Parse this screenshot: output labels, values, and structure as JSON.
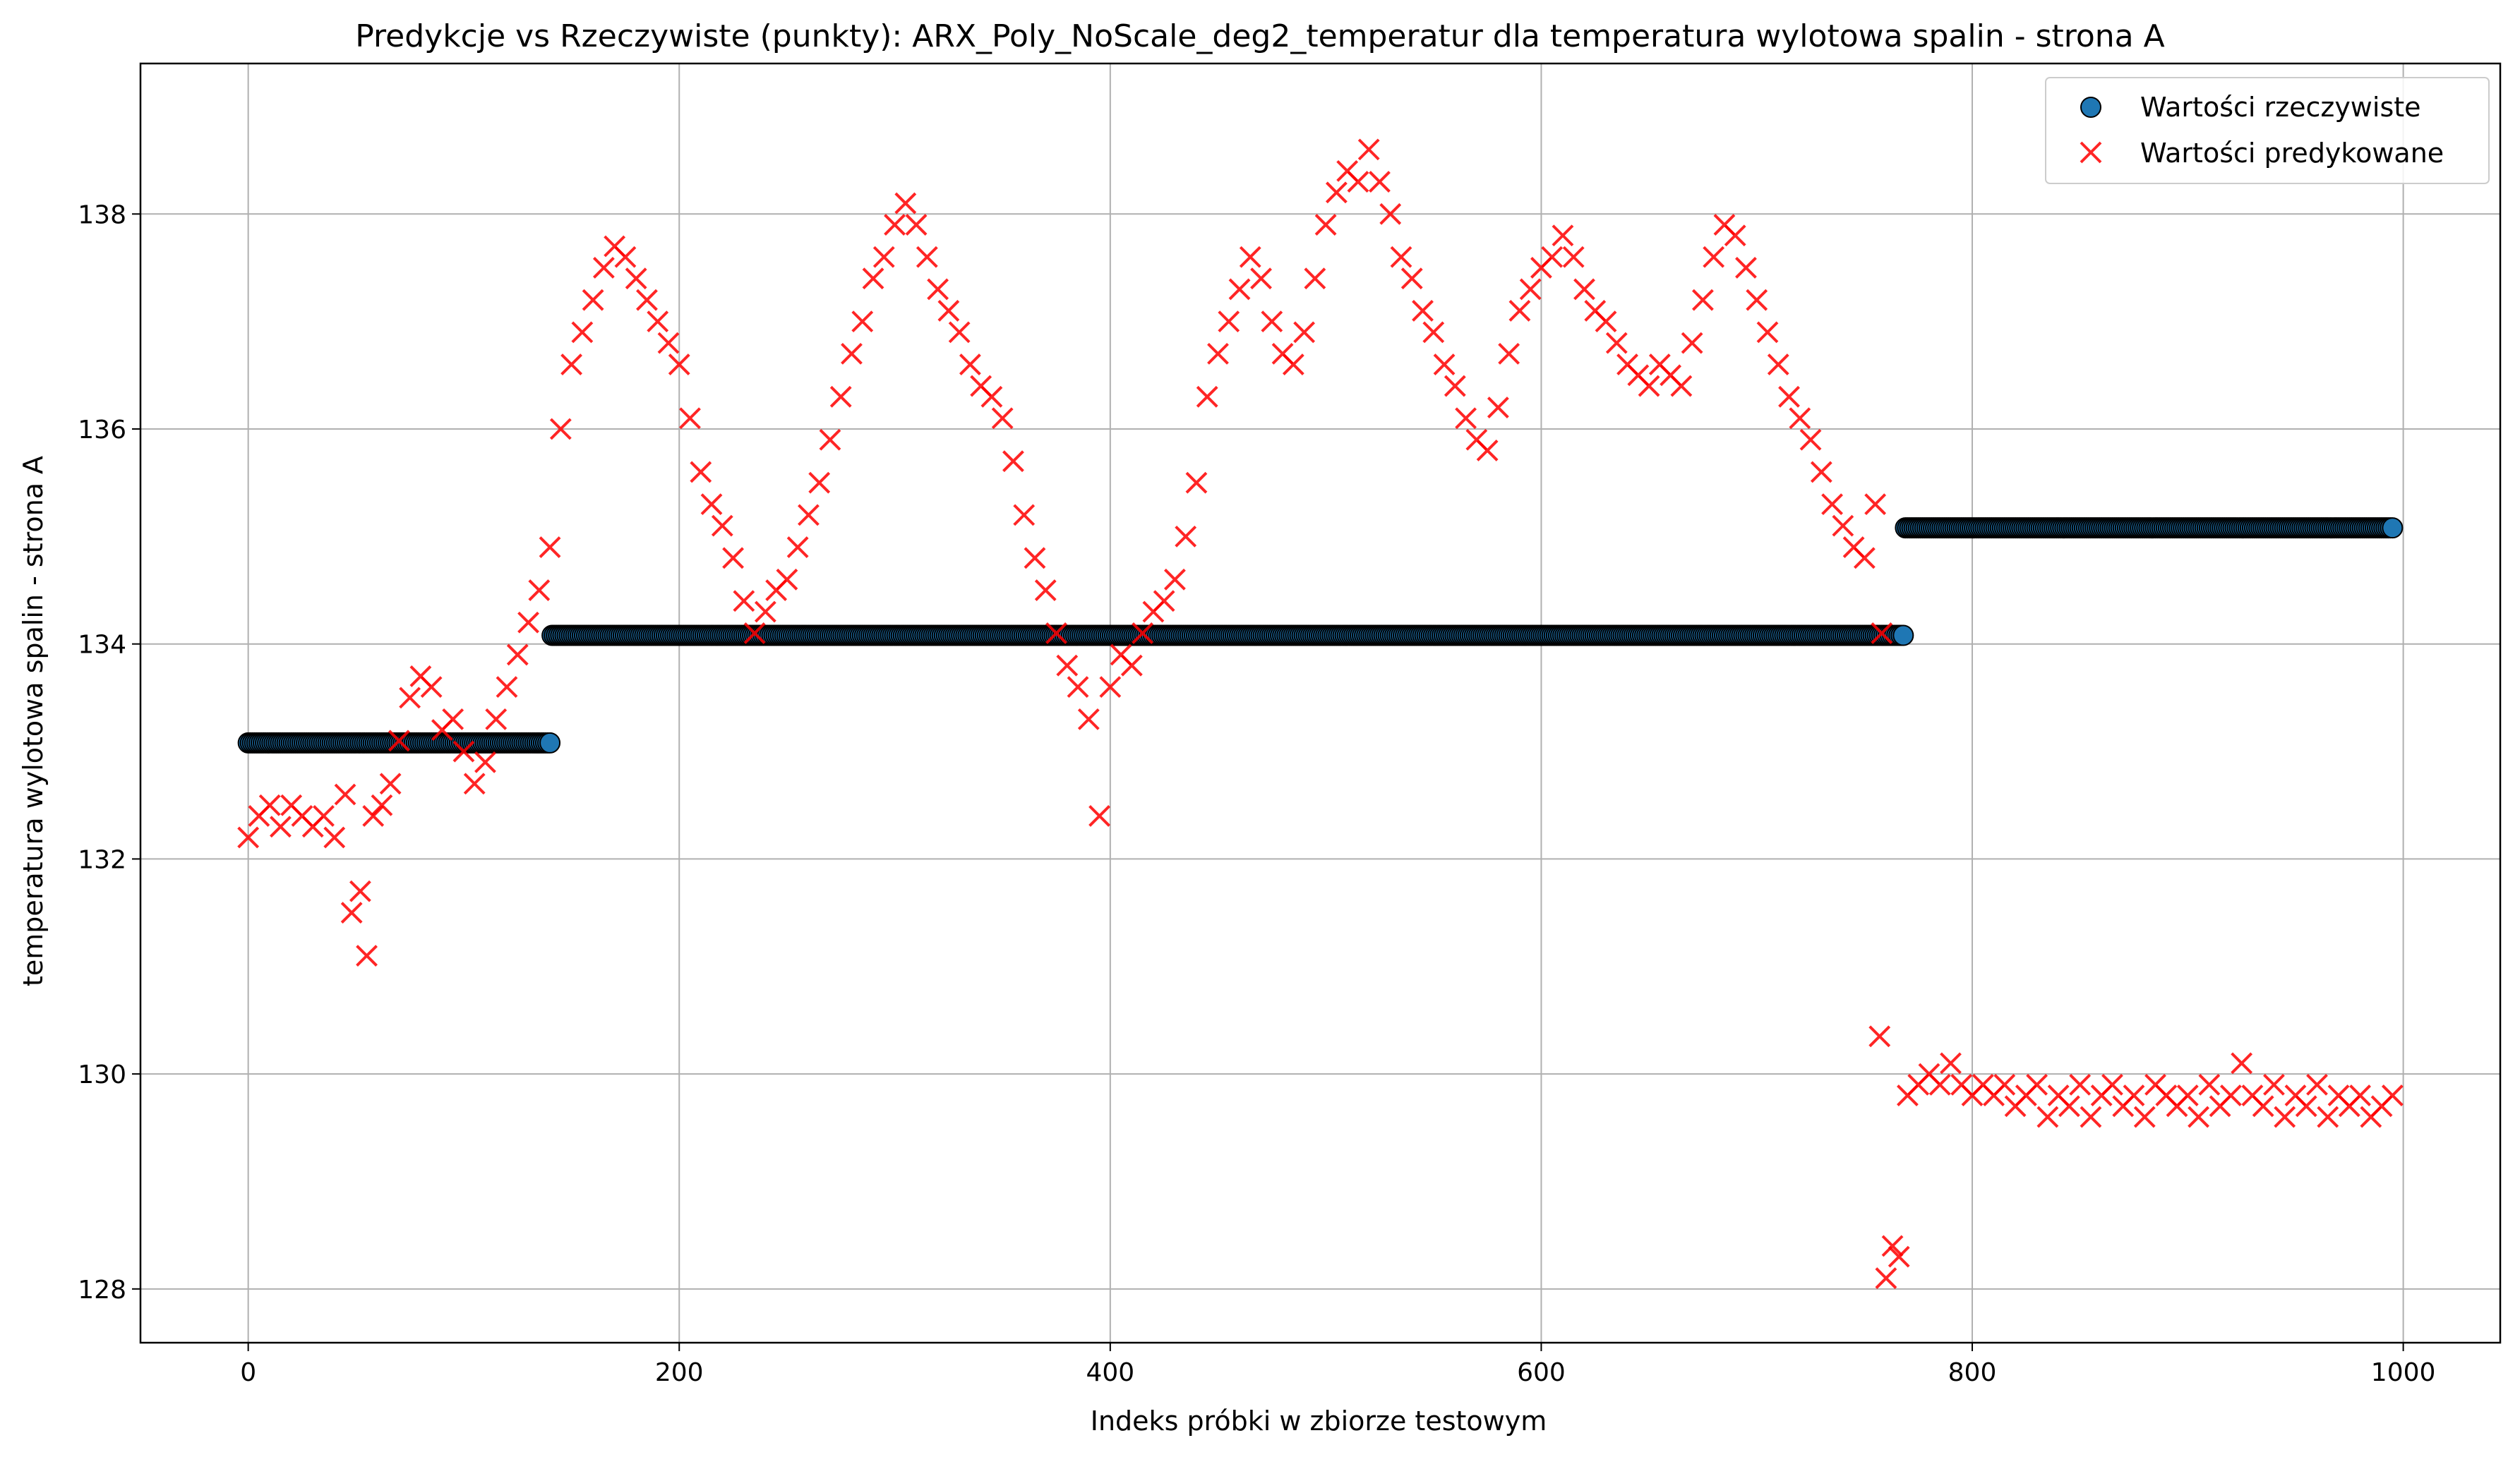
{
  "chart_data": {
    "type": "scatter",
    "title": "Predykcje vs Rzeczywiste (punkty): ARX_Poly_NoScale_deg2_temperatur dla temperatura wylotowa spalin - strona A",
    "xlabel": "Indeks próbki w zbiorze testowym",
    "ylabel": "temperatura wylotowa spalin - strona A",
    "xlim": [
      -50,
      1045
    ],
    "ylim": [
      127.5,
      139.4
    ],
    "xticks": [
      0,
      200,
      400,
      600,
      800,
      1000
    ],
    "yticks": [
      128,
      130,
      132,
      134,
      136,
      138
    ],
    "xtick_labels": [
      "0",
      "200",
      "400",
      "600",
      "800",
      "1000"
    ],
    "ytick_labels": [
      "128",
      "130",
      "132",
      "134",
      "136",
      "138"
    ],
    "grid": true,
    "legend_position": "top-right",
    "series": [
      {
        "name": "Wartości rzeczywiste",
        "marker": "circle",
        "color": "#1f77b4",
        "edge_color": "#000000",
        "segments": [
          {
            "x_start": 0,
            "x_end": 140,
            "y": 133.08
          },
          {
            "x_start": 141,
            "x_end": 768,
            "y": 134.08
          },
          {
            "x_start": 769,
            "x_end": 995,
            "y": 135.08
          }
        ]
      },
      {
        "name": "Wartości predykowane",
        "marker": "x",
        "color": "#ff0000",
        "points": [
          [
            0,
            132.2
          ],
          [
            5,
            132.4
          ],
          [
            10,
            132.5
          ],
          [
            15,
            132.3
          ],
          [
            20,
            132.5
          ],
          [
            25,
            132.4
          ],
          [
            30,
            132.3
          ],
          [
            35,
            132.4
          ],
          [
            40,
            132.2
          ],
          [
            45,
            132.6
          ],
          [
            48,
            131.5
          ],
          [
            52,
            131.7
          ],
          [
            55,
            131.1
          ],
          [
            58,
            132.4
          ],
          [
            62,
            132.5
          ],
          [
            66,
            132.7
          ],
          [
            70,
            133.1
          ],
          [
            75,
            133.5
          ],
          [
            80,
            133.7
          ],
          [
            85,
            133.6
          ],
          [
            90,
            133.2
          ],
          [
            95,
            133.3
          ],
          [
            100,
            133.0
          ],
          [
            105,
            132.7
          ],
          [
            110,
            132.9
          ],
          [
            115,
            133.3
          ],
          [
            120,
            133.6
          ],
          [
            125,
            133.9
          ],
          [
            130,
            134.2
          ],
          [
            135,
            134.5
          ],
          [
            140,
            134.9
          ],
          [
            145,
            136.0
          ],
          [
            150,
            136.6
          ],
          [
            155,
            136.9
          ],
          [
            160,
            137.2
          ],
          [
            165,
            137.5
          ],
          [
            170,
            137.7
          ],
          [
            175,
            137.6
          ],
          [
            180,
            137.4
          ],
          [
            185,
            137.2
          ],
          [
            190,
            137.0
          ],
          [
            195,
            136.8
          ],
          [
            200,
            136.6
          ],
          [
            205,
            136.1
          ],
          [
            210,
            135.6
          ],
          [
            215,
            135.3
          ],
          [
            220,
            135.1
          ],
          [
            225,
            134.8
          ],
          [
            230,
            134.4
          ],
          [
            235,
            134.1
          ],
          [
            240,
            134.3
          ],
          [
            245,
            134.5
          ],
          [
            250,
            134.6
          ],
          [
            255,
            134.9
          ],
          [
            260,
            135.2
          ],
          [
            265,
            135.5
          ],
          [
            270,
            135.9
          ],
          [
            275,
            136.3
          ],
          [
            280,
            136.7
          ],
          [
            285,
            137.0
          ],
          [
            290,
            137.4
          ],
          [
            295,
            137.6
          ],
          [
            300,
            137.9
          ],
          [
            305,
            138.1
          ],
          [
            310,
            137.9
          ],
          [
            315,
            137.6
          ],
          [
            320,
            137.3
          ],
          [
            325,
            137.1
          ],
          [
            330,
            136.9
          ],
          [
            335,
            136.6
          ],
          [
            340,
            136.4
          ],
          [
            345,
            136.3
          ],
          [
            350,
            136.1
          ],
          [
            355,
            135.7
          ],
          [
            360,
            135.2
          ],
          [
            365,
            134.8
          ],
          [
            370,
            134.5
          ],
          [
            375,
            134.1
          ],
          [
            380,
            133.8
          ],
          [
            385,
            133.6
          ],
          [
            390,
            133.3
          ],
          [
            395,
            132.4
          ],
          [
            400,
            133.6
          ],
          [
            405,
            133.9
          ],
          [
            410,
            133.8
          ],
          [
            415,
            134.1
          ],
          [
            420,
            134.3
          ],
          [
            425,
            134.4
          ],
          [
            430,
            134.6
          ],
          [
            435,
            135.0
          ],
          [
            440,
            135.5
          ],
          [
            445,
            136.3
          ],
          [
            450,
            136.7
          ],
          [
            455,
            137.0
          ],
          [
            460,
            137.3
          ],
          [
            465,
            137.6
          ],
          [
            470,
            137.4
          ],
          [
            475,
            137.0
          ],
          [
            480,
            136.7
          ],
          [
            485,
            136.6
          ],
          [
            490,
            136.9
          ],
          [
            495,
            137.4
          ],
          [
            500,
            137.9
          ],
          [
            505,
            138.2
          ],
          [
            510,
            138.4
          ],
          [
            515,
            138.3
          ],
          [
            520,
            138.6
          ],
          [
            525,
            138.3
          ],
          [
            530,
            138.0
          ],
          [
            535,
            137.6
          ],
          [
            540,
            137.4
          ],
          [
            545,
            137.1
          ],
          [
            550,
            136.9
          ],
          [
            555,
            136.6
          ],
          [
            560,
            136.4
          ],
          [
            565,
            136.1
          ],
          [
            570,
            135.9
          ],
          [
            575,
            135.8
          ],
          [
            580,
            136.2
          ],
          [
            585,
            136.7
          ],
          [
            590,
            137.1
          ],
          [
            595,
            137.3
          ],
          [
            600,
            137.5
          ],
          [
            605,
            137.6
          ],
          [
            610,
            137.8
          ],
          [
            615,
            137.6
          ],
          [
            620,
            137.3
          ],
          [
            625,
            137.1
          ],
          [
            630,
            137.0
          ],
          [
            635,
            136.8
          ],
          [
            640,
            136.6
          ],
          [
            645,
            136.5
          ],
          [
            650,
            136.4
          ],
          [
            655,
            136.6
          ],
          [
            660,
            136.5
          ],
          [
            665,
            136.4
          ],
          [
            670,
            136.8
          ],
          [
            675,
            137.2
          ],
          [
            680,
            137.6
          ],
          [
            685,
            137.9
          ],
          [
            690,
            137.8
          ],
          [
            695,
            137.5
          ],
          [
            700,
            137.2
          ],
          [
            705,
            136.9
          ],
          [
            710,
            136.6
          ],
          [
            715,
            136.3
          ],
          [
            720,
            136.1
          ],
          [
            725,
            135.9
          ],
          [
            730,
            135.6
          ],
          [
            735,
            135.3
          ],
          [
            740,
            135.1
          ],
          [
            745,
            134.9
          ],
          [
            750,
            134.8
          ],
          [
            755,
            135.3
          ],
          [
            758,
            134.1
          ],
          [
            757,
            130.35
          ],
          [
            760,
            128.1
          ],
          [
            763,
            128.4
          ],
          [
            766,
            128.3
          ],
          [
            770,
            129.8
          ],
          [
            775,
            129.9
          ],
          [
            780,
            130.0
          ],
          [
            785,
            129.9
          ],
          [
            790,
            130.1
          ],
          [
            795,
            129.9
          ],
          [
            800,
            129.8
          ],
          [
            805,
            129.9
          ],
          [
            810,
            129.8
          ],
          [
            815,
            129.9
          ],
          [
            820,
            129.7
          ],
          [
            825,
            129.8
          ],
          [
            830,
            129.9
          ],
          [
            835,
            129.6
          ],
          [
            840,
            129.8
          ],
          [
            845,
            129.7
          ],
          [
            850,
            129.9
          ],
          [
            855,
            129.6
          ],
          [
            860,
            129.8
          ],
          [
            865,
            129.9
          ],
          [
            870,
            129.7
          ],
          [
            875,
            129.8
          ],
          [
            880,
            129.6
          ],
          [
            885,
            129.9
          ],
          [
            890,
            129.8
          ],
          [
            895,
            129.7
          ],
          [
            900,
            129.8
          ],
          [
            905,
            129.6
          ],
          [
            910,
            129.9
          ],
          [
            915,
            129.7
          ],
          [
            920,
            129.8
          ],
          [
            925,
            130.1
          ],
          [
            930,
            129.8
          ],
          [
            935,
            129.7
          ],
          [
            940,
            129.9
          ],
          [
            945,
            129.6
          ],
          [
            950,
            129.8
          ],
          [
            955,
            129.7
          ],
          [
            960,
            129.9
          ],
          [
            965,
            129.6
          ],
          [
            970,
            129.8
          ],
          [
            975,
            129.7
          ],
          [
            980,
            129.8
          ],
          [
            985,
            129.6
          ],
          [
            990,
            129.7
          ],
          [
            995,
            129.8
          ]
        ]
      }
    ]
  }
}
